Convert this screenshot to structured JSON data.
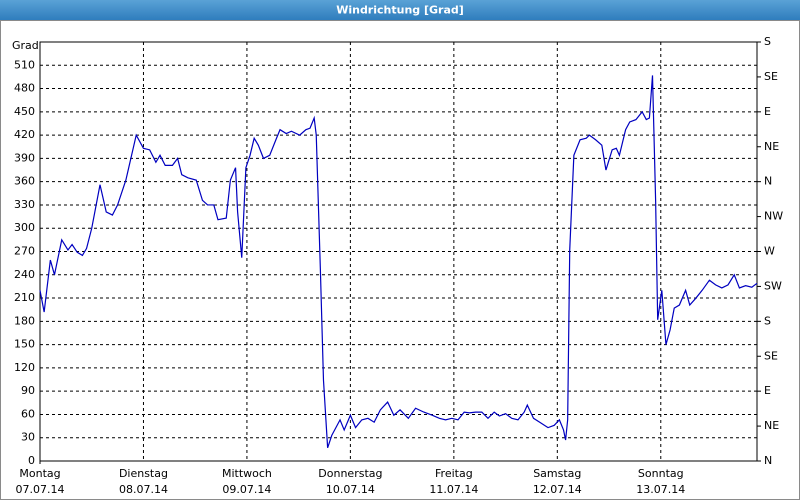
{
  "chart_data": {
    "type": "line",
    "title": "Windrichtung [Grad]",
    "y_label": "Grad",
    "color": "#0000c0",
    "grid": true,
    "xlim": [
      0,
      6.93
    ],
    "xticks": [
      {
        "value": 0,
        "label": "Montag"
      },
      {
        "value": 1,
        "label": "Dienstag"
      },
      {
        "value": 2,
        "label": "Mittwoch"
      },
      {
        "value": 3,
        "label": "Donnerstag"
      },
      {
        "value": 4,
        "label": "Freitag"
      },
      {
        "value": 5,
        "label": "Samstag"
      },
      {
        "value": 6,
        "label": "Sonntag"
      }
    ],
    "xtick_dates": [
      "07.07.14",
      "08.07.14",
      "09.07.14",
      "10.07.14",
      "11.07.14",
      "12.07.14",
      "13.07.14"
    ],
    "ylim": [
      0,
      540
    ],
    "yticks": [
      0,
      30,
      60,
      90,
      120,
      150,
      180,
      210,
      240,
      270,
      300,
      330,
      360,
      390,
      420,
      450,
      480,
      510
    ],
    "y2lim": [
      0,
      540
    ],
    "y2ticks": [
      {
        "value": 0,
        "label": "N"
      },
      {
        "value": 45,
        "label": "NE"
      },
      {
        "value": 90,
        "label": "E"
      },
      {
        "value": 135,
        "label": "SE"
      },
      {
        "value": 180,
        "label": "S"
      },
      {
        "value": 225,
        "label": "SW"
      },
      {
        "value": 270,
        "label": "W"
      },
      {
        "value": 315,
        "label": "NW"
      },
      {
        "value": 360,
        "label": "N"
      },
      {
        "value": 405,
        "label": "NE"
      },
      {
        "value": 450,
        "label": "E"
      },
      {
        "value": 495,
        "label": "SE"
      },
      {
        "value": 540,
        "label": "S"
      }
    ],
    "x": [
      0,
      0.04,
      0.1,
      0.14,
      0.21,
      0.27,
      0.31,
      0.36,
      0.41,
      0.45,
      0.5,
      0.58,
      0.64,
      0.7,
      0.75,
      0.83,
      0.93,
      1.0,
      1.06,
      1.12,
      1.16,
      1.21,
      1.28,
      1.33,
      1.37,
      1.43,
      1.51,
      1.57,
      1.62,
      1.68,
      1.72,
      1.8,
      1.84,
      1.89,
      1.91,
      1.95,
      1.99,
      2.03,
      2.07,
      2.11,
      2.16,
      2.22,
      2.28,
      2.32,
      2.38,
      2.43,
      2.51,
      2.57,
      2.61,
      2.65,
      2.67,
      2.71,
      2.74,
      2.78,
      2.82,
      2.86,
      2.9,
      2.94,
      3.0,
      3.05,
      3.11,
      3.17,
      3.23,
      3.29,
      3.36,
      3.42,
      3.48,
      3.56,
      3.63,
      3.71,
      3.79,
      3.86,
      3.92,
      3.98,
      4.04,
      4.1,
      4.15,
      4.21,
      4.27,
      4.33,
      4.39,
      4.44,
      4.5,
      4.56,
      4.62,
      4.68,
      4.71,
      4.77,
      4.83,
      4.91,
      4.97,
      5.02,
      5.06,
      5.08,
      5.1,
      5.12,
      5.16,
      5.22,
      5.28,
      5.31,
      5.37,
      5.43,
      5.47,
      5.53,
      5.57,
      5.6,
      5.66,
      5.7,
      5.76,
      5.82,
      5.86,
      5.89,
      5.92,
      5.95,
      5.97,
      6.01,
      6.05,
      6.09,
      6.13,
      6.18,
      6.24,
      6.28,
      6.34,
      6.4,
      6.47,
      6.53,
      6.59,
      6.65,
      6.71,
      6.76,
      6.82,
      6.88,
      6.93
    ],
    "values": [
      220,
      192,
      259,
      240,
      285,
      272,
      279,
      269,
      265,
      274,
      300,
      356,
      321,
      317,
      330,
      362,
      420,
      403,
      401,
      385,
      394,
      381,
      381,
      390,
      369,
      365,
      362,
      336,
      330,
      330,
      311,
      313,
      362,
      378,
      321,
      262,
      378,
      394,
      416,
      407,
      390,
      394,
      414,
      427,
      422,
      425,
      420,
      427,
      429,
      442,
      420,
      246,
      104,
      17,
      33,
      43,
      53,
      40,
      59,
      43,
      53,
      55,
      50,
      66,
      76,
      59,
      66,
      55,
      68,
      63,
      59,
      55,
      53,
      55,
      53,
      63,
      62,
      63,
      63,
      55,
      63,
      58,
      61,
      55,
      53,
      63,
      72,
      55,
      50,
      43,
      46,
      53,
      40,
      27,
      53,
      272,
      394,
      414,
      416,
      420,
      414,
      407,
      375,
      401,
      403,
      394,
      427,
      437,
      440,
      450,
      440,
      442,
      497,
      336,
      182,
      220,
      150,
      169,
      197,
      201,
      220,
      201,
      210,
      220,
      233,
      227,
      223,
      227,
      240,
      223,
      226,
      224,
      229
    ]
  }
}
